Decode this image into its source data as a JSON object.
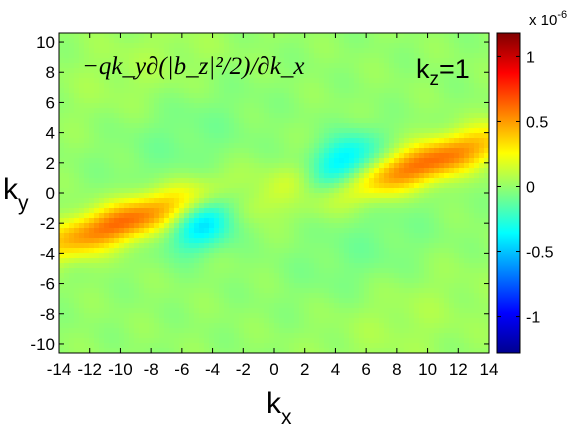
{
  "chart_data": {
    "type": "heatmap",
    "title": "−qk_y∂(|b_z|²/2)/∂k_x",
    "annotation": {
      "label": "k",
      "sub": "z",
      "value": "=1"
    },
    "xlabel": {
      "main": "k",
      "sub": "x"
    },
    "ylabel": {
      "main": "k",
      "sub": "y"
    },
    "xlim": [
      -14,
      14
    ],
    "ylim": [
      -10.6,
      10.6
    ],
    "xticks": [
      "-14",
      "-12",
      "-10",
      "-8",
      "-6",
      "-4",
      "-2",
      "0",
      "2",
      "4",
      "6",
      "8",
      "10",
      "12",
      "14"
    ],
    "yticks": [
      "-10",
      "-8",
      "-6",
      "-4",
      "-2",
      "0",
      "2",
      "4",
      "6",
      "8",
      "10"
    ],
    "colormap": "jet",
    "clim": [
      -1.28e-06,
      1.18e-06
    ],
    "colorbar": {
      "exponent_label": "x 10",
      "exponent": "-6",
      "ticks": [
        {
          "value": 1,
          "label": "1"
        },
        {
          "value": 0.5,
          "label": "0.5"
        },
        {
          "value": 0,
          "label": "0"
        },
        {
          "value": -0.5,
          "label": "-0.5"
        },
        {
          "value": -1,
          "label": "-1"
        }
      ]
    },
    "features": [
      {
        "kind": "band",
        "x": 10,
        "y": 2,
        "amplitude": 6.2e-07,
        "spread_x": 4.0,
        "spread_y": 1.0,
        "tilt": 0.32
      },
      {
        "kind": "band",
        "x": -10,
        "y": -2,
        "amplitude": 6.2e-07,
        "spread_x": 4.0,
        "spread_y": 1.0,
        "tilt": 0.32
      },
      {
        "kind": "blob",
        "x": 4.5,
        "y": 2,
        "amplitude": -4.5e-07,
        "spread_x": 1.6,
        "spread_y": 1.2,
        "tilt": 0.3
      },
      {
        "kind": "blob",
        "x": -4.5,
        "y": -2,
        "amplitude": -4.5e-07,
        "spread_x": 1.6,
        "spread_y": 1.2,
        "tilt": 0.3
      },
      {
        "kind": "blob",
        "x": 1.5,
        "y": 1,
        "amplitude": 1.2e-07,
        "spread_x": 1.5,
        "spread_y": 0.8,
        "tilt": 0.3
      },
      {
        "kind": "blob",
        "x": -1.5,
        "y": -1,
        "amplitude": 1.2e-07,
        "spread_x": 1.5,
        "spread_y": 0.8,
        "tilt": 0.3
      },
      {
        "kind": "blob",
        "x": 6,
        "y": -4,
        "amplitude": -8e-08,
        "spread_x": 3.5,
        "spread_y": 2.5,
        "tilt": 0.3
      },
      {
        "kind": "blob",
        "x": -6,
        "y": 4,
        "amplitude": -8e-08,
        "spread_x": 3.5,
        "spread_y": 2.5,
        "tilt": 0.3
      },
      {
        "kind": "blob",
        "x": -8,
        "y": 8,
        "amplitude": 6e-08,
        "spread_x": 4.0,
        "spread_y": 2.5,
        "tilt": 0.2
      },
      {
        "kind": "blob",
        "x": 8,
        "y": -8,
        "amplitude": 6e-08,
        "spread_x": 4.0,
        "spread_y": 2.5,
        "tilt": 0.2
      }
    ]
  }
}
